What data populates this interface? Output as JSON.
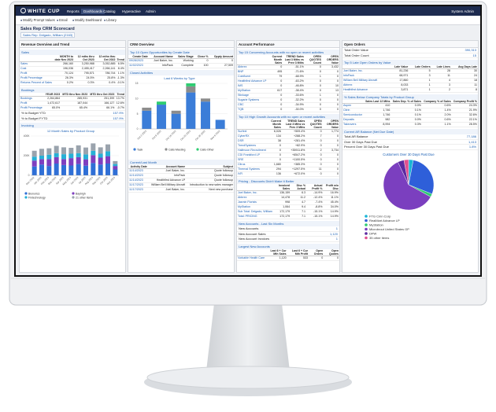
{
  "nav": {
    "logo": "WHITE CUP",
    "items": [
      "Reports",
      "Dashboards",
      "Catalog",
      "Hyperactive",
      "Admin"
    ],
    "user": "System Admin"
  },
  "toolbar": [
    "Modify Prompt Values",
    "Email",
    "Modify Dashboard",
    "Library"
  ],
  "header": {
    "title": "Sales Rep CRM Scorecard",
    "subtitle": "Sales Rep: Delgado, William (2163)"
  },
  "columns": [
    [
      {
        "heading": "Revenue Overview and Trend",
        "title": "Sales",
        "table": {
          "columns": [
            "MONTH to date Nov 2023",
            "12 mths thru Oct 2023",
            "12 mths thru Oct 2022",
            "Trend"
          ],
          "rows": [
            [
              "Sales",
              "266,160",
              "3,250,988",
              "3,052,885",
              "6.5%"
            ],
            [
              "Cost",
              "196,036",
              "2,455,417",
              "2,266,141",
              "8.4%"
            ],
            [
              "Profit",
              "70,124",
              "795,571",
              "786,744",
              "1.1%"
            ],
            [
              "Profit Percentage",
              "26.3%",
              "24.5%",
              "25.8%",
              "-1.3%"
            ],
            [
              "Returns Percent of Sales",
              "0.2%",
              "0.3%",
              "0.4%",
              "-0.1%"
            ]
          ]
        }
      },
      {
        "title": "Bookings",
        "table": {
          "columns": [
            "YEAR 2023",
            "MTD thru Nov 2023",
            "MTD thru Oct 2023",
            "Trend"
          ],
          "rows": [
            [
              "Bookings",
              "2,264,864",
              "285,931",
              "251,399",
              "13.7%"
            ],
            [
              "Profit",
              "1,472,617",
              "187,044",
              "166,127",
              "12.6%"
            ],
            [
              "Profit Percentage",
              "65.0%",
              "65.4%",
              "66.1%",
              "-0.7%"
            ]
          ]
        },
        "kv": [
          {
            "label": "% to Budget YTD",
            "value": "157.9%"
          },
          {
            "label": "% to Budget FYTD",
            "value": "157.9%"
          }
        ]
      },
      {
        "title": "Invoicing",
        "chart": {
          "type": "bar",
          "title": "12 Month Sales by Product Group",
          "categories": [
            "Dec 2022",
            "Jan 2023",
            "Feb 2023",
            "Mar 2023",
            "Apr 2023",
            "May 2023",
            "Jun 2023",
            "Jul 2023",
            "Aug 2023",
            "Sep 2023",
            "Oct 2023",
            "Nov 2023"
          ],
          "series": [
            {
              "name": "Bionorics",
              "color": "#2f6fd6",
              "values": [
                90000,
                110000,
                95000,
                120000,
                105000,
                100000,
                115000,
                98000,
                125000,
                110000,
                120000,
                60000
              ]
            },
            {
              "name": "Bayhigh",
              "color": "#7e3fbf",
              "values": [
                60000,
                55000,
                70000,
                65000,
                60000,
                75000,
                70000,
                65000,
                80000,
                70000,
                75000,
                35000
              ]
            },
            {
              "name": "Fintechnology",
              "color": "#27b0d6",
              "values": [
                40000,
                35000,
                45000,
                40000,
                50000,
                45000,
                40000,
                50000,
                45000,
                40000,
                50000,
                20000
              ]
            },
            {
              "name": "21 other items",
              "color": "#9aa3ad",
              "values": [
                60000,
                70000,
                65000,
                75000,
                70000,
                60000,
                80000,
                70000,
                75000,
                65000,
                70000,
                30000
              ]
            }
          ],
          "ylim": [
            0,
            400000
          ],
          "yticks": [
            0,
            {
              "value": 200000,
              "label": "200K"
            },
            {
              "value": 400000,
              "label": "400K"
            }
          ]
        }
      }
    ],
    [
      {
        "heading": "CRM Overview",
        "title": "Top 10 Open Opportunities by Create Date",
        "table": {
          "columns": [
            "Create Date",
            "Account Name",
            "Sales Stage",
            "Close %",
            "Oppty Amount"
          ],
          "rows": [
            [
              "09/28/2023",
              "Joel Baker, Inc.",
              "Working",
              "0",
              "0"
            ],
            [
              "11/02/2023",
              "InfoPack",
              "Complete",
              "100",
              "27,509"
            ]
          ]
        }
      },
      {
        "title": "Closed Activities",
        "chart": {
          "type": "bar",
          "title": "Last 6 Weeks by Type",
          "categories": [
            "Oct 2 2023",
            "Oct 9 2023",
            "Oct 16 2023",
            "Oct 23 2023",
            "Oct 30 2023",
            "Nov 6 2023"
          ],
          "series": [
            {
              "name": "Task",
              "color": "#3b7dd8",
              "values": [
                6,
                8,
                5,
                12,
                9,
                3
              ]
            },
            {
              "name": "Calls-Meeting",
              "color": "#8c8c8c",
              "values": [
                1,
                0,
                1,
                2,
                1,
                0
              ]
            },
            {
              "name": "Calls-Other",
              "color": "#2ecc71",
              "values": [
                0,
                1,
                0,
                1,
                0,
                0
              ]
            }
          ],
          "ylim": [
            0,
            15
          ],
          "yticks": [
            0,
            5,
            10,
            15
          ]
        }
      },
      {
        "title": "Current/Last Month",
        "table": {
          "columns": [
            "Activity Date",
            "Account Name",
            "Subject"
          ],
          "rows": [
            [
              "11/14/2023",
              "Joel Baker, Inc.",
              "Quote followup"
            ],
            [
              "11/14/2023",
              "InfoPack",
              "Quote followup"
            ],
            [
              "11/14/2023",
              "Healthfirst Advance LP",
              "Quote followup"
            ],
            [
              "11/17/2023",
              "William Bell Military Aircraft",
              "Introduction to new sales manager"
            ],
            [
              "11/17/2023",
              "Joel Baker, Inc.",
              "Next new purchase"
            ]
          ]
        }
      }
    ],
    [
      {
        "heading": "Account Performance",
        "title": "Top 15 Concerning Accounts with no open or recent activities",
        "table": {
          "columns": [
            "Current Month Sales",
            "TREND Sales Last 3 Mths vs Prev 3 Mths",
            "OPEN QUOTES Count",
            "OPEN ORDERS Value"
          ],
          "rows": [
            [
              "Abbrex",
              "0",
              "-51.1%",
              "0",
              "3,432"
            ],
            [
              "BNP",
              "495",
              "-71.6%",
              "0",
              "0"
            ],
            [
              "Coinfluent",
              "79",
              "-68.9%",
              "1",
              "0"
            ],
            [
              "Healthfirst Advance LP",
              "0",
              "-63.2%",
              "0",
              "0"
            ],
            [
              "IMS",
              "0",
              "-46.8%",
              "0",
              "10"
            ],
            [
              "MyStation",
              "617",
              "-38.4%",
              "0",
              "13"
            ],
            [
              "Stinkage",
              "0",
              "-33.6%",
              "1",
              "0"
            ],
            [
              "Sugarie Systems",
              "0",
              "-32.2%",
              "0",
              "0"
            ],
            [
              "CBC",
              "0",
              "-34.9%",
              "0",
              "0"
            ],
            [
              "TQB",
              "0",
              "-30.0%",
              "0",
              "0"
            ]
          ]
        }
      },
      {
        "title": "Top 10 High Growth Accounts with no open or recent activities",
        "table": {
          "columns": [
            "Current Month Sales",
            "TREND Sales Last 3 Mths vs Prev 3 Mths",
            "OPEN QUOTES Count",
            "OPEN ORDERS Value"
          ],
          "rows": [
            [
              "Surfext",
              "6,026",
              "+509.4%",
              "0",
              "1,774"
            ],
            [
              "CyberRX",
              "134",
              "+288.2%",
              "7",
              "0"
            ],
            [
              "DSR",
              "38",
              "+281.4%",
              "0",
              "0"
            ],
            [
              "TrendSystems",
              "0",
              "+82.9%",
              "0",
              "0"
            ],
            [
              "Halfmoon Recruitment",
              "0",
              "+35911.8%",
              "2",
              "3,734"
            ],
            [
              "CDI Frankford LP",
              "0",
              "+6547.2%",
              "0",
              "0"
            ],
            [
              "SRE",
              "0",
              "+1100.5%",
              "0",
              "0"
            ],
            [
              "Citrus",
              "1,680",
              "+385.3%",
              "0",
              "0"
            ],
            [
              "Thermal Systems",
              "294",
              "+1297.5%",
              "11",
              "0"
            ],
            [
              "IVR",
              "136",
              "+672.0%",
              "0",
              "0"
            ]
          ]
        }
      },
      {
        "title": "Pricing - Discounts Didn't Make It Better",
        "table": {
          "columns": [
            "Invoiced Sales",
            "Disc % Actual",
            "Actual Profit %",
            "Profit w/o Disc"
          ],
          "rows": [
            [
              "Joel Baker, Inc.",
              "136,159",
              "6.3",
              "-14.9%",
              "16.9%"
            ],
            [
              "Abbrex",
              "14,478",
              "11.2",
              "-12.4%",
              "11.1%"
            ],
            [
              "Jasmin Florists",
              "998",
              "4.7",
              "-7.4%",
              "45.4%"
            ],
            [
              "MyStation",
              "1,064",
              "9.4",
              "-8.8%",
              "34.0%"
            ],
            [
              "Sub Total: Delgado, William",
              "172,179",
              "7.1",
              "-15.1%",
              "14.9%"
            ],
            [
              "Total: PRICING",
              "172,179",
              "7.1",
              "-15.1%",
              "14.9%"
            ]
          ]
        }
      },
      {
        "title": "New Accounts - Last Six Months",
        "kv": [
          {
            "label": "New Accounts",
            "value": "1"
          },
          {
            "label": "New Account Sales",
            "value": "1,120"
          },
          {
            "label": "New Account Invoices",
            "value": "1"
          }
        ]
      },
      {
        "title": "Largest New Accounts",
        "table": {
          "columns": [
            "Last 6 + Cur Mth Sales",
            "Last 6 + Cur Mth Profit",
            "Open Orders",
            "Open Quotes"
          ],
          "rows": [
            [
              "Vorkable Health Care",
              "1,120",
              "533",
              "0",
              "0"
            ]
          ]
        }
      }
    ],
    [
      {
        "heading": "Open Orders",
        "kv": [
          {
            "label": "Total Order Value",
            "value": "390,313"
          },
          {
            "label": "Total Order Count",
            "value": "15"
          }
        ]
      },
      {
        "title": "Top 5 Late Open Orders by Value",
        "table": {
          "columns": [
            "Late Value",
            "Late Orders",
            "Late Lines",
            "Avg Days Late"
          ],
          "rows": [
            [
              "Joel Baker, Inc.",
              "81,236",
              "5",
              "28",
              "30"
            ],
            [
              "InfoPack",
              "68,971",
              "3",
              "11",
              "24"
            ],
            [
              "William Bell Military Aircraft",
              "17,860",
              "1",
              "4",
              "18"
            ],
            [
              "Abbrex",
              "8,033",
              "1",
              "3",
              "11"
            ],
            [
              "Healthfirst Advance",
              "3,871",
              "1",
              "2",
              "8"
            ]
          ]
        }
      },
      {
        "title": "% Sales Below Company Totals by Product Group",
        "table": {
          "columns": [
            "Sales Last 12 Mths",
            "Sales Dep. % of Sales",
            "Company % of Sales",
            "Company Profit %"
          ],
          "rows": [
            [
              "Aspen",
              "410",
              "0.0%",
              "0.6%",
              "24.3%"
            ],
            [
              "Citrin",
              "1,746",
              "0.1%",
              "1.4%",
              "21.9%"
            ],
            [
              "Semiconductor",
              "1,746",
              "0.1%",
              "2.0%",
              "32.6%"
            ],
            [
              "Deposits",
              "982",
              "0.0%",
              "0.6%",
              "22.1%"
            ],
            [
              "Takeovers",
              "8,994",
              "0.3%",
              "1.1%",
              "28.5%"
            ]
          ]
        }
      },
      {
        "title": "Current AR Balance (Net Due Date)",
        "kv": [
          {
            "label": "Total AR Balance",
            "value": "77,186"
          },
          {
            "label": "Over 30 Days Past Due",
            "value": "1,413"
          },
          {
            "label": "Percent Over 30 Days Past Due",
            "value": "1.8%"
          }
        ]
      },
      {
        "chart": {
          "type": "pie",
          "title": "Customers Over 30 Days Past Due",
          "categories": [
            "FTG Cmn Corp",
            "RealMart Advance LP",
            "MyStation",
            "Microbrout United States GP",
            "DPW",
            "35 other items"
          ],
          "values": [
            3,
            28,
            2,
            60,
            4,
            3
          ],
          "colors": [
            "#19b5d6",
            "#2e5fd9",
            "#2ecc71",
            "#7b3fbf",
            "#5b2aa0",
            "#e0508f"
          ]
        }
      }
    ]
  ]
}
